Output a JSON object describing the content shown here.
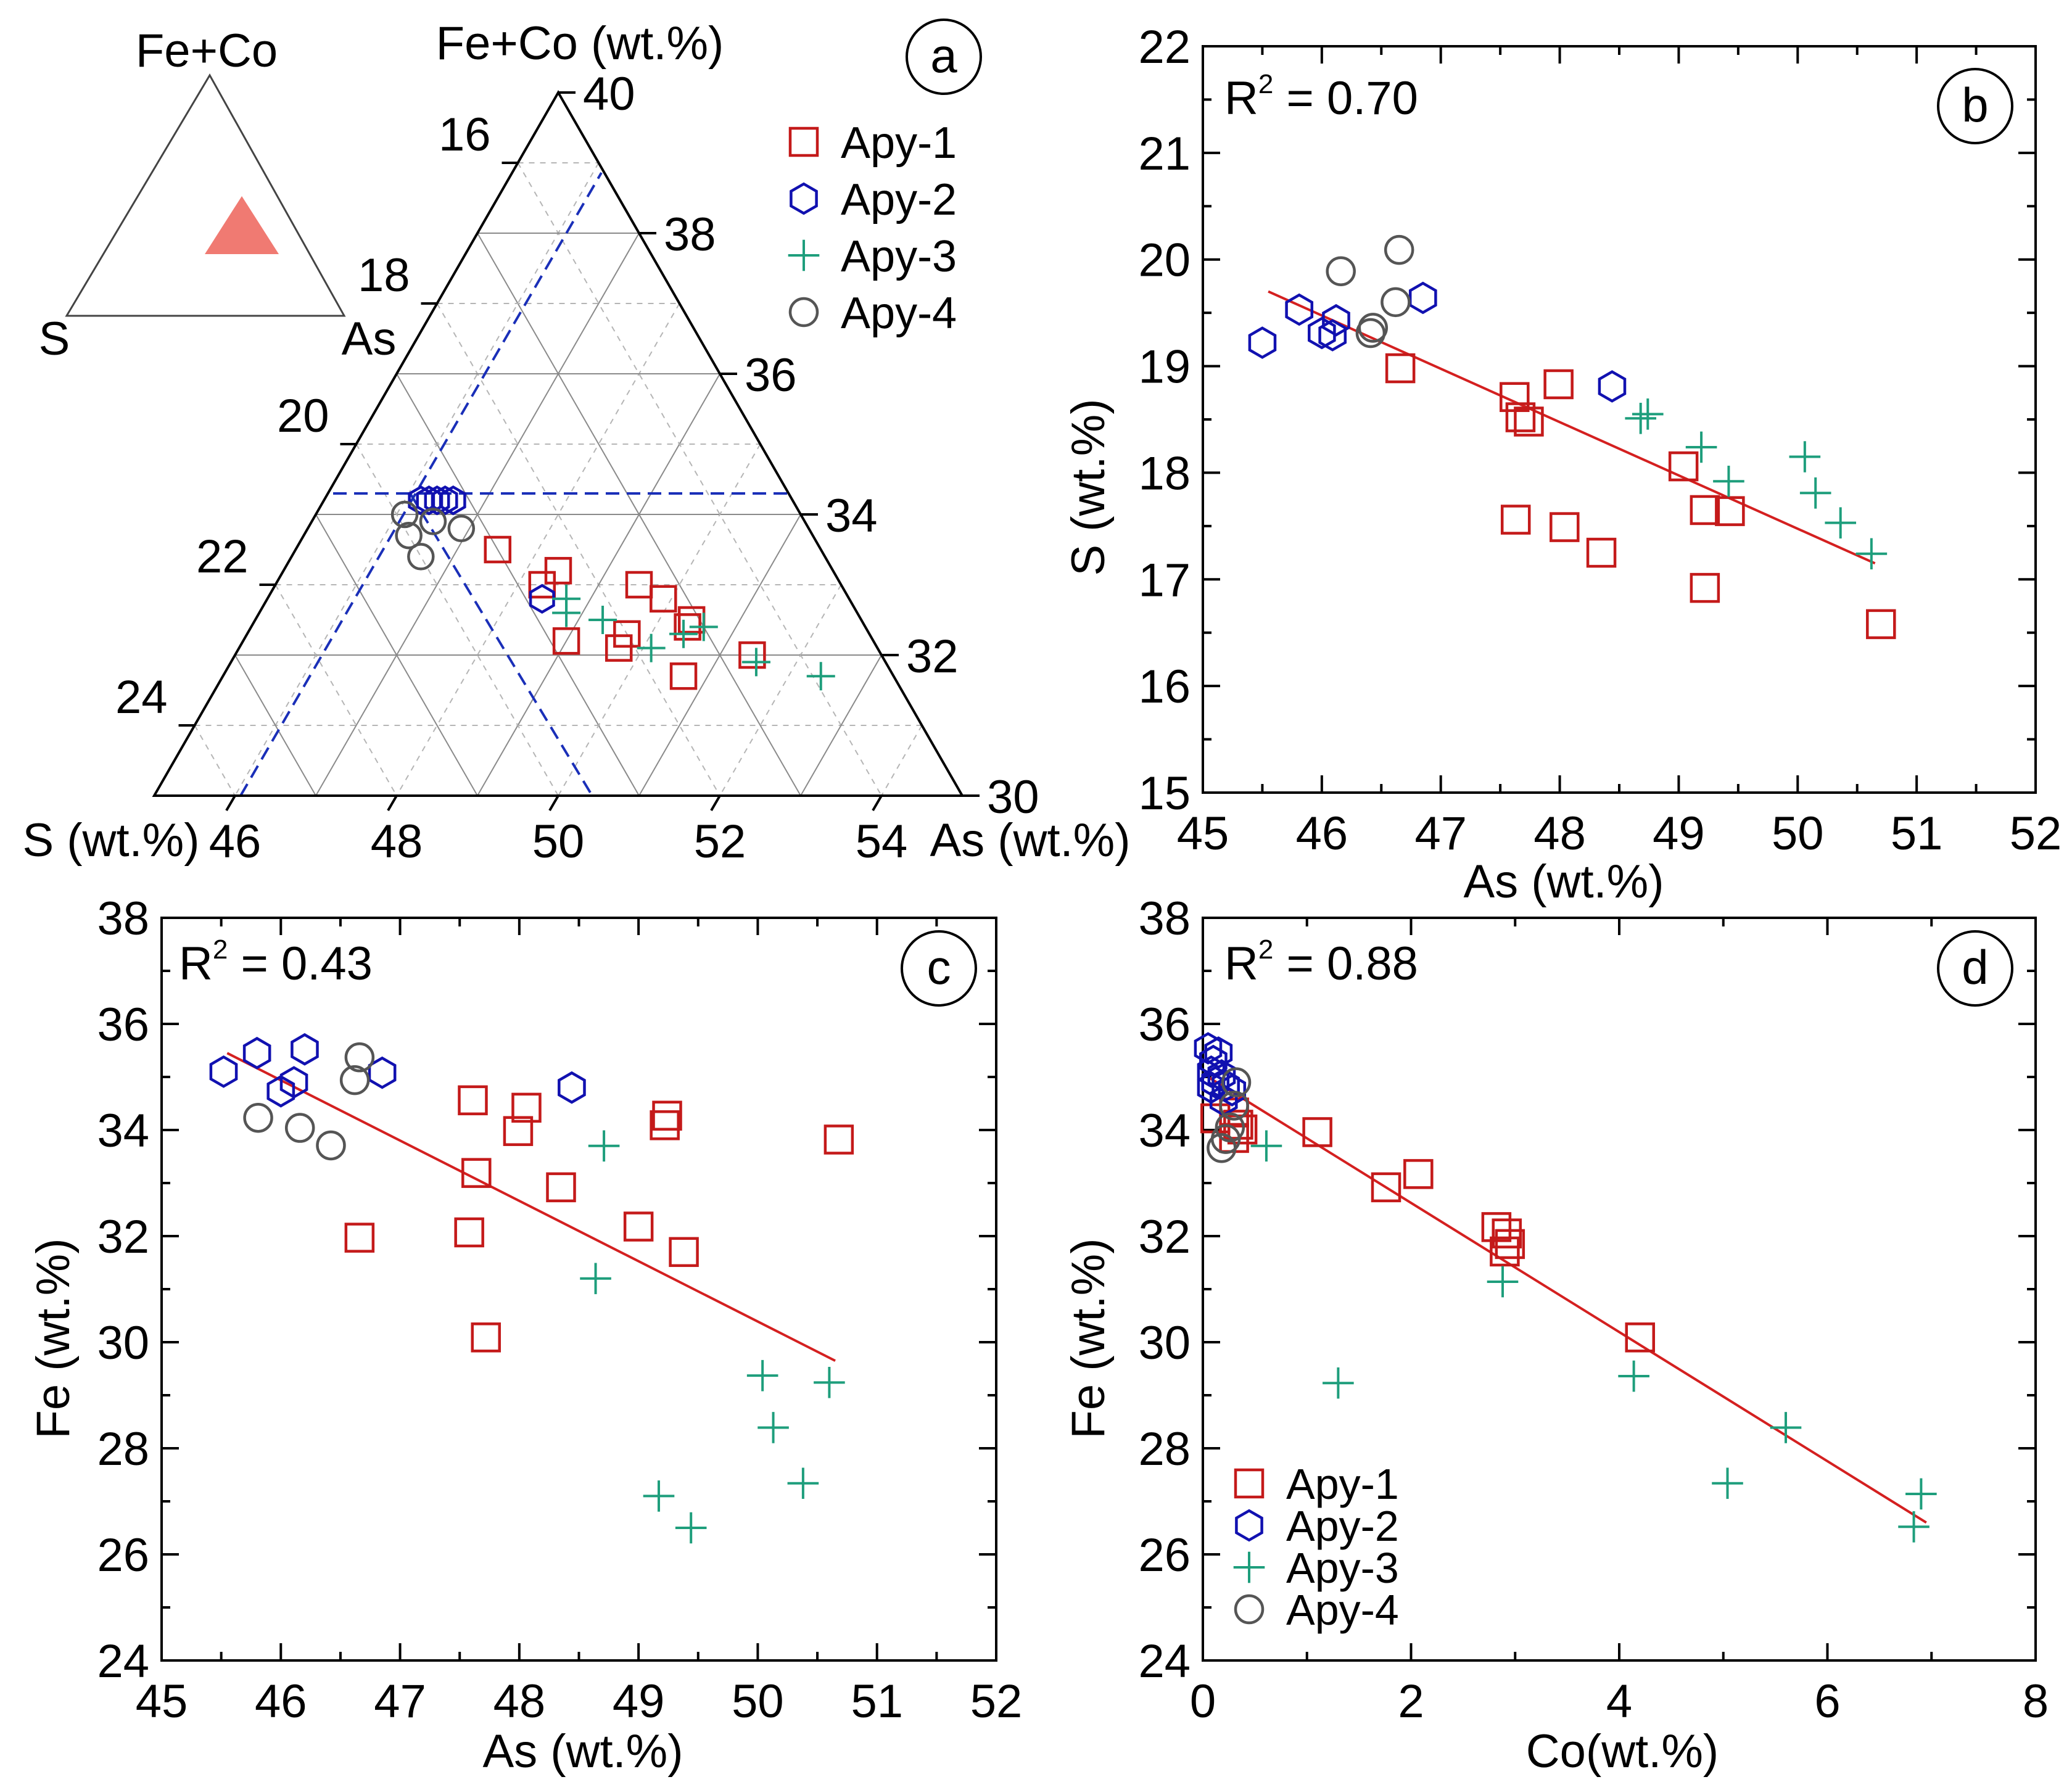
{
  "colors": {
    "apy1": "#c41a1a",
    "apy2": "#1111b0",
    "apy3": "#1e9e7c",
    "apy4": "#555555",
    "fit": "#d42020",
    "boundary": "#1a2fb8",
    "field": "#f07a72"
  },
  "legend": [
    "Apy-1",
    "Apy-2",
    "Apy-3",
    "Apy-4"
  ],
  "chart_data": [
    {
      "id": "a",
      "type": "scatter",
      "subtype": "ternary",
      "panel_label": "a",
      "inset": {
        "top": "Fe+Co",
        "left": "S",
        "right": "As"
      },
      "axes": {
        "top_label": "Fe+Co (wt.%)",
        "left_label": "S (wt.%)",
        "right_label": "As (wt.%)",
        "s_range": [
          15,
          25
        ],
        "as_range": [
          45,
          55
        ],
        "fe_range": [
          30,
          40
        ],
        "s_ticks": [
          "16",
          "18",
          "20",
          "22",
          "24"
        ],
        "as_ticks": [
          "46",
          "48",
          "50",
          "52",
          "54"
        ],
        "fe_ticks": [
          "30",
          "32",
          "34",
          "36",
          "38",
          "40"
        ]
      },
      "boundaries": [
        {
          "from": [
            15.0,
            45.0
          ],
          "to": [
            15.0,
            45.0
          ]
        }
      ],
      "series": [
        {
          "name": "Apy-1",
          "marker": "square",
          "points": [
            [
              19.0,
              47.5
            ],
            [
              18.7,
              48.3
            ],
            [
              18.4,
              48.4
            ],
            [
              18.8,
              49.0
            ],
            [
              18.0,
              49.7
            ],
            [
              18.2,
              49.7
            ],
            [
              17.5,
              49.5
            ],
            [
              17.3,
              49.9
            ],
            [
              17.6,
              50.7
            ],
            [
              16.6,
              51.4
            ],
            [
              17.2,
              50.4
            ],
            [
              17.1,
              50.4
            ]
          ]
        },
        {
          "name": "Apy-2",
          "marker": "hexagon",
          "points": [
            [
              19.6,
              46.2
            ],
            [
              19.5,
              46.3
            ],
            [
              19.3,
              46.5
            ],
            [
              19.4,
              46.4
            ],
            [
              19.2,
              46.6
            ],
            [
              18.8,
              48.4
            ]
          ]
        },
        {
          "name": "Apy-3",
          "marker": "plus",
          "points": [
            [
              18.5,
              48.7
            ],
            [
              18.6,
              48.8
            ],
            [
              18.2,
              49.3
            ],
            [
              17.8,
              50.1
            ],
            [
              17.3,
              50.4
            ],
            [
              17.0,
              50.6
            ],
            [
              16.6,
              51.5
            ],
            [
              15.9,
              52.4
            ]
          ]
        },
        {
          "name": "Apy-4",
          "marker": "circle",
          "points": [
            [
              19.9,
              46.1
            ],
            [
              20.0,
              46.3
            ],
            [
              19.6,
              46.5
            ],
            [
              20.0,
              46.6
            ],
            [
              19.3,
              46.9
            ]
          ]
        }
      ]
    },
    {
      "id": "b",
      "type": "scatter",
      "panel_label": "b",
      "annotation": {
        "base": "R",
        "sup": "2",
        "rest": " = 0.70"
      },
      "xlabel": "As (wt.%)",
      "ylabel": "S (wt.%)",
      "xlim": [
        45,
        52
      ],
      "ylim": [
        15,
        22
      ],
      "xticks": [
        45,
        46,
        47,
        48,
        49,
        50,
        51,
        52
      ],
      "yticks": [
        15,
        16,
        17,
        18,
        19,
        20,
        21,
        22
      ],
      "fit": {
        "x": [
          45.55,
          50.65
        ],
        "y": [
          19.7,
          17.15
        ]
      },
      "series": [
        {
          "name": "Apy-1",
          "marker": "square",
          "x": [
            46.66,
            47.62,
            47.67,
            47.74,
            47.99,
            47.63,
            48.04,
            48.35,
            49.04,
            49.22,
            49.43,
            49.22,
            50.7
          ],
          "y": [
            18.98,
            18.71,
            18.52,
            18.48,
            18.83,
            17.56,
            17.49,
            17.25,
            18.06,
            17.65,
            17.64,
            16.92,
            16.58
          ]
        },
        {
          "name": "Apy-2",
          "marker": "hexagon",
          "x": [
            45.5,
            45.81,
            46.0,
            46.09,
            46.12,
            46.85,
            48.44
          ],
          "y": [
            19.22,
            19.53,
            19.31,
            19.29,
            19.43,
            19.64,
            18.81
          ]
        },
        {
          "name": "Apy-3",
          "marker": "plus",
          "x": [
            48.68,
            48.74,
            49.19,
            49.42,
            50.06,
            50.15,
            50.36,
            50.62
          ],
          "y": [
            18.51,
            18.55,
            18.24,
            17.92,
            18.15,
            17.81,
            17.53,
            17.24
          ]
        },
        {
          "name": "Apy-4",
          "marker": "circle",
          "x": [
            46.16,
            46.62,
            46.65,
            46.41,
            46.43
          ],
          "y": [
            19.89,
            19.6,
            20.09,
            19.31,
            19.36
          ]
        }
      ]
    },
    {
      "id": "c",
      "type": "scatter",
      "panel_label": "c",
      "annotation": {
        "base": "R",
        "sup": "2",
        "rest": " = 0.43"
      },
      "xlabel": "As (wt.%)",
      "ylabel": "Fe (wt.%)",
      "xlim": [
        45,
        52
      ],
      "ylim": [
        24,
        38
      ],
      "xticks": [
        45,
        46,
        47,
        48,
        49,
        50,
        51,
        52
      ],
      "yticks": [
        24,
        26,
        28,
        30,
        32,
        34,
        36,
        38
      ],
      "fit": {
        "x": [
          45.55,
          50.65
        ],
        "y": [
          35.45,
          29.65
        ]
      },
      "series": [
        {
          "name": "Apy-1",
          "marker": "square",
          "x": [
            46.66,
            47.61,
            47.64,
            47.72,
            47.99,
            48.06,
            48.35,
            49.0,
            49.22,
            49.24,
            49.38,
            50.68,
            47.58
          ],
          "y": [
            31.97,
            34.56,
            33.19,
            30.09,
            33.98,
            34.42,
            32.92,
            32.18,
            34.09,
            34.27,
            31.7,
            33.82,
            32.07
          ]
        },
        {
          "name": "Apy-2",
          "marker": "hexagon",
          "x": [
            45.52,
            45.8,
            46.0,
            46.11,
            46.2,
            46.85,
            48.44
          ],
          "y": [
            35.1,
            35.45,
            34.73,
            34.9,
            35.52,
            35.08,
            34.8
          ]
        },
        {
          "name": "Apy-3",
          "marker": "plus",
          "x": [
            48.71,
            48.64,
            50.04,
            50.13,
            50.38,
            50.6,
            49.17,
            49.44
          ],
          "y": [
            33.7,
            31.2,
            29.37,
            28.39,
            27.34,
            29.24,
            27.1,
            26.5
          ]
        },
        {
          "name": "Apy-4",
          "marker": "circle",
          "x": [
            45.81,
            46.16,
            46.42,
            46.66,
            46.62
          ],
          "y": [
            34.23,
            34.04,
            33.71,
            35.37,
            34.94
          ]
        }
      ]
    },
    {
      "id": "d",
      "type": "scatter",
      "panel_label": "d",
      "annotation": {
        "base": "R",
        "sup": "2",
        "rest": " = 0.88"
      },
      "xlabel": "Co(wt.%)",
      "ylabel": "Fe (wt.%)",
      "xlim": [
        0,
        8
      ],
      "ylim": [
        24,
        38
      ],
      "xticks": [
        0,
        2,
        4,
        6,
        8
      ],
      "yticks": [
        24,
        26,
        28,
        30,
        32,
        34,
        36,
        38
      ],
      "fit": {
        "x": [
          0.05,
          6.95
        ],
        "y": [
          35.0,
          26.6
        ]
      },
      "legend_position": "bottom-left",
      "series": [
        {
          "name": "Apy-1",
          "marker": "square",
          "x": [
            0.12,
            0.3,
            0.3,
            0.38,
            0.34,
            1.1,
            1.76,
            2.07,
            2.82,
            2.9,
            2.95,
            2.92,
            4.2
          ],
          "y": [
            34.22,
            34.33,
            33.85,
            34.01,
            34.1,
            33.96,
            32.92,
            33.17,
            32.17,
            31.71,
            31.85,
            32.05,
            30.09
          ]
        },
        {
          "name": "Apy-2",
          "marker": "hexagon",
          "x": [
            0.05,
            0.08,
            0.12,
            0.15,
            0.18,
            0.22,
            0.28,
            0.2,
            0.08,
            0.1
          ],
          "y": [
            35.54,
            35.1,
            34.9,
            35.46,
            35.03,
            34.84,
            34.75,
            34.56,
            34.8,
            35.3
          ]
        },
        {
          "name": "Apy-3",
          "marker": "plus",
          "x": [
            0.61,
            2.88,
            1.3,
            4.14,
            5.04,
            5.6,
            6.83,
            6.9
          ],
          "y": [
            33.7,
            31.14,
            29.23,
            29.36,
            27.34,
            28.39,
            26.52,
            27.14
          ]
        },
        {
          "name": "Apy-4",
          "marker": "circle",
          "x": [
            0.18,
            0.22,
            0.26,
            0.3,
            0.32
          ],
          "y": [
            33.66,
            33.83,
            34.05,
            34.46,
            34.9
          ]
        }
      ]
    }
  ]
}
